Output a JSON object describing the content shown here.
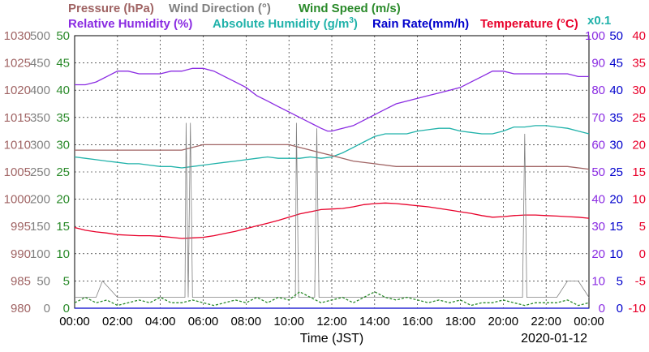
{
  "legend": {
    "pressure": "Pressure (hPa)",
    "wind_direction": "Wind Direction (°)",
    "wind_speed": "Wind Speed (m/s)",
    "relative_humidity": "Relative Humidity (%)",
    "absolute_humidity": "Absolute Humidity (g/m",
    "absolute_humidity_sup": "3",
    "absolute_humidity_close": ")",
    "rain_rate": "Rain Rate(mm/h)",
    "temperature": "Temperature (°C)",
    "multiplier": "x0.1"
  },
  "colors": {
    "pressure": "#a06464",
    "wind_direction": "#808080",
    "wind_speed": "#2a8a2a",
    "relative_humidity": "#8a2be2",
    "absolute_humidity": "#20b2aa",
    "rain_rate": "#0000cc",
    "temperature": "#e8002a"
  },
  "chart_data": {
    "type": "line",
    "xlabel": "Time (JST)",
    "date": "2020-01-12",
    "x_ticks": [
      "00:00",
      "02:00",
      "04:00",
      "06:00",
      "08:00",
      "10:00",
      "12:00",
      "14:00",
      "16:00",
      "18:00",
      "20:00",
      "22:00",
      "00:00"
    ],
    "axes": {
      "pressure": {
        "ticks": [
          "1030",
          "1025",
          "1020",
          "1015",
          "1010",
          "1005",
          "1000",
          "995",
          "990",
          "985",
          "980"
        ],
        "range": [
          980,
          1030
        ]
      },
      "wind_direction": {
        "ticks": [
          "500",
          "450",
          "400",
          "350",
          "300",
          "250",
          "200",
          "150",
          "100",
          "50",
          "0"
        ],
        "range": [
          0,
          500
        ]
      },
      "wind_speed": {
        "ticks": [
          "50",
          "45",
          "40",
          "35",
          "30",
          "25",
          "20",
          "15",
          "10",
          "5",
          "0"
        ],
        "range": [
          0,
          50
        ]
      },
      "humidity": {
        "ticks": [
          "100",
          "90",
          "80",
          "70",
          "60",
          "50",
          "40",
          "30",
          "20",
          "10",
          "0"
        ],
        "range": [
          0,
          100
        ]
      },
      "rain_rate": {
        "ticks": [
          "50",
          "45",
          "40",
          "35",
          "30",
          "25",
          "20",
          "15",
          "10",
          "5",
          "0"
        ],
        "range": [
          0,
          50
        ]
      },
      "temperature": {
        "ticks": [
          "40",
          "35",
          "30",
          "25",
          "20",
          "15",
          "10",
          "5",
          "0",
          "-5",
          "-10"
        ],
        "range": [
          -10,
          40
        ]
      }
    },
    "series": [
      {
        "name": "Relative Humidity (%)",
        "axis": "humidity",
        "x": [
          0,
          0.5,
          1.0,
          1.5,
          2.0,
          2.5,
          3.0,
          3.5,
          4.0,
          4.5,
          5.0,
          5.5,
          6.0,
          6.5,
          7.0,
          7.5,
          8.0,
          8.5,
          9.0,
          9.5,
          10.0,
          10.5,
          11.0,
          11.5,
          11.8,
          12.0,
          12.5,
          13.0,
          13.5,
          14.0,
          14.5,
          15.0,
          15.5,
          16.0,
          16.5,
          17.0,
          17.5,
          18.0,
          18.5,
          19.0,
          19.5,
          20.0,
          20.5,
          21.0,
          21.5,
          22.0,
          22.5,
          23.0,
          23.5,
          24.0
        ],
        "y": [
          82,
          82,
          83,
          85,
          87,
          87,
          86,
          86,
          86,
          87,
          87,
          88,
          88,
          87,
          85,
          83,
          81,
          78,
          76,
          74,
          72,
          70,
          68,
          66,
          65,
          65,
          66,
          67,
          69,
          71,
          73,
          75,
          76,
          77,
          78,
          79,
          80,
          81,
          83,
          85,
          87,
          87,
          86,
          86,
          86,
          86,
          86,
          86,
          85,
          85
        ]
      },
      {
        "name": "Absolute Humidity (g/m3)",
        "axis": "humidity",
        "x": [
          0,
          0.5,
          1.0,
          1.5,
          2.0,
          2.5,
          3.0,
          3.5,
          4.0,
          4.5,
          5.0,
          5.5,
          6.0,
          6.5,
          7.0,
          7.5,
          8.0,
          8.5,
          9.0,
          9.5,
          10.0,
          10.5,
          11.0,
          11.5,
          12.0,
          12.5,
          13.0,
          13.5,
          14.0,
          14.5,
          15.0,
          15.5,
          16.0,
          16.5,
          17.0,
          17.5,
          18.0,
          18.5,
          19.0,
          19.5,
          20.0,
          20.5,
          21.0,
          21.5,
          22.0,
          22.5,
          23.0,
          23.5,
          24.0
        ],
        "y": [
          55.5,
          55,
          54.5,
          54,
          53.5,
          53,
          53,
          52.5,
          52,
          52,
          51.5,
          52,
          52.5,
          53,
          53.5,
          54,
          54.5,
          55,
          55.5,
          55,
          55,
          55,
          55.5,
          55,
          55.5,
          57,
          59,
          61,
          63,
          64,
          64,
          64,
          65,
          65.5,
          66,
          66,
          65,
          64.5,
          64,
          64,
          65,
          66.5,
          66.5,
          67,
          67,
          66.5,
          66,
          65,
          64
        ]
      },
      {
        "name": "Pressure (hPa)",
        "axis": "pressure",
        "x": [
          0,
          1,
          2,
          3,
          4,
          5,
          6,
          7,
          8,
          9,
          10,
          10.5,
          11,
          11.5,
          12,
          13,
          14,
          15,
          16,
          17,
          18,
          19,
          20,
          21,
          22,
          23,
          24
        ],
        "y": [
          1009,
          1009,
          1009,
          1009,
          1009,
          1009,
          1010,
          1010,
          1010,
          1010,
          1010,
          1009.5,
          1009,
          1008.5,
          1008,
          1007,
          1006.5,
          1006,
          1006,
          1006,
          1006,
          1006,
          1006,
          1006,
          1006,
          1006,
          1005.5
        ]
      },
      {
        "name": "Temperature (°C)",
        "axis": "temperature",
        "x": [
          0,
          0.5,
          1.0,
          1.5,
          2.0,
          2.5,
          3.0,
          3.5,
          4.0,
          4.5,
          5.0,
          5.5,
          6.0,
          6.5,
          7.0,
          7.5,
          8.0,
          8.5,
          9.0,
          9.5,
          10.0,
          10.5,
          11.0,
          11.5,
          12.0,
          12.5,
          13.0,
          13.5,
          14.0,
          14.5,
          15.0,
          15.5,
          16.0,
          16.5,
          17.0,
          17.5,
          18.0,
          18.5,
          19.0,
          19.5,
          20.0,
          20.5,
          21.0,
          21.5,
          22.0,
          22.5,
          23.0,
          23.5,
          24.0
        ],
        "y": [
          4.8,
          4.3,
          4.0,
          3.8,
          3.5,
          3.4,
          3.3,
          3.3,
          3.2,
          3.0,
          2.8,
          2.9,
          3.0,
          3.3,
          3.7,
          4.1,
          4.6,
          5.1,
          5.6,
          6.1,
          6.7,
          7.3,
          7.7,
          8.1,
          8.2,
          8.3,
          8.6,
          9.0,
          9.2,
          9.3,
          9.2,
          9.0,
          8.8,
          8.6,
          8.3,
          8.0,
          7.7,
          7.4,
          7.0,
          6.7,
          6.8,
          7.0,
          7.1,
          7.1,
          7.0,
          6.9,
          6.8,
          6.7,
          6.5
        ]
      },
      {
        "name": "Wind Direction (°)",
        "axis": "wind_direction",
        "x": [
          0,
          1,
          1.3,
          2,
          2.5,
          3,
          4,
          5,
          5.15,
          5.2,
          5.3,
          5.4,
          5.5,
          5.6,
          6,
          7,
          8,
          9,
          10,
          10.3,
          10.35,
          10.45,
          10.6,
          11,
          11.2,
          11.3,
          11.4,
          11.55,
          12,
          13,
          14,
          15,
          16,
          17,
          18,
          19,
          20,
          20.9,
          21.0,
          21.1,
          21.3,
          22,
          22.5,
          23,
          23.5,
          24
        ],
        "y": [
          20,
          20,
          50,
          20,
          20,
          20,
          20,
          20,
          20,
          340,
          20,
          340,
          20,
          20,
          20,
          20,
          20,
          20,
          20,
          20,
          340,
          20,
          20,
          20,
          20,
          330,
          20,
          20,
          20,
          20,
          20,
          20,
          20,
          20,
          20,
          20,
          20,
          20,
          320,
          20,
          20,
          20,
          20,
          50,
          50,
          20
        ]
      },
      {
        "name": "Wind Speed (m/s)",
        "axis": "wind_speed",
        "x": [
          0,
          0.5,
          1,
          1.5,
          2,
          2.5,
          3,
          3.5,
          4,
          4.5,
          5,
          5.5,
          6,
          6.5,
          7,
          7.5,
          8,
          8.5,
          9,
          9.5,
          10,
          10.5,
          11,
          11.5,
          12,
          12.5,
          13,
          13.5,
          14,
          14.5,
          15,
          15.5,
          16,
          16.5,
          17,
          17.5,
          18,
          18.5,
          19,
          19.5,
          20,
          20.5,
          21,
          21.5,
          22,
          22.5,
          23,
          23.5,
          24
        ],
        "y": [
          1,
          2,
          1,
          1.5,
          0.5,
          1,
          1.5,
          1,
          2,
          1,
          1,
          1.5,
          1,
          0.5,
          1,
          1.5,
          1,
          2,
          1,
          2,
          1.5,
          3,
          2,
          1,
          1.5,
          2,
          1,
          2,
          3,
          2,
          1.5,
          2,
          1.5,
          1,
          1.5,
          1,
          1.5,
          0.5,
          1,
          1,
          1.5,
          1,
          0.5,
          1,
          1,
          1,
          1.5,
          0.5,
          1
        ]
      },
      {
        "name": "Rain Rate(mm/h)",
        "axis": "rain_rate",
        "x": [
          0,
          24
        ],
        "y": [
          0,
          0
        ]
      }
    ]
  }
}
